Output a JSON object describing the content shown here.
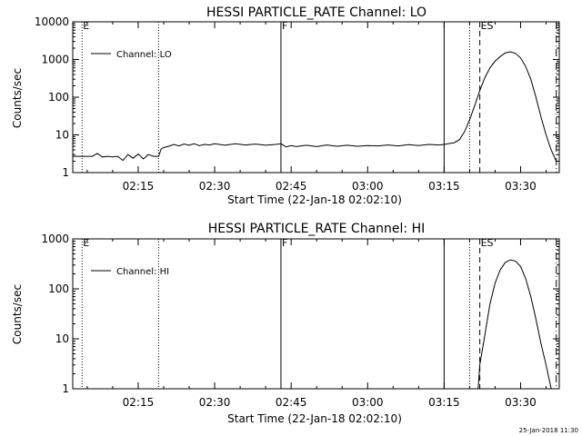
{
  "footer": {
    "timestamp": "25-Jan-2018 11:30"
  },
  "chart_data": [
    {
      "type": "line",
      "title": "HESSI PARTICLE_RATE Channel: LO",
      "xlabel": "Start Time (22-Jan-18 02:02:10)",
      "ylabel": "Counts/sec",
      "yscale": "log",
      "ylim": [
        1,
        10000
      ],
      "yticks": [
        1,
        10,
        100,
        1000,
        10000
      ],
      "ytick_labels": [
        "1",
        "10",
        "100",
        "1000",
        "10000"
      ],
      "xlim": [
        "02:02:10",
        "03:37:35"
      ],
      "xticks": [
        "02:15",
        "02:30",
        "02:45",
        "03:00",
        "03:15",
        "03:30"
      ],
      "legend": {
        "label": "Channel: LO",
        "placement": "top-left"
      },
      "markers": [
        {
          "time": "02:04",
          "label": "E",
          "style": "dotted"
        },
        {
          "time": "02:19",
          "label": "",
          "style": "dotted"
        },
        {
          "time": "02:43",
          "label": "F",
          "style": "solid"
        },
        {
          "time": "03:15",
          "label": "",
          "style": "solid"
        },
        {
          "time": "03:20",
          "label": "",
          "style": "dotted"
        },
        {
          "time": "03:22",
          "label": "ES",
          "style": "dashed"
        },
        {
          "time": "03:37",
          "label": "",
          "style": "dash-dot"
        }
      ],
      "series": [
        {
          "name": "Channel: LO",
          "points": [
            [
              "02:02:10",
              2.7
            ],
            [
              "02:06",
              2.7
            ],
            [
              "02:07",
              3.2
            ],
            [
              "02:08",
              2.6
            ],
            [
              "02:09",
              2.7
            ],
            [
              "02:10",
              2.6
            ],
            [
              "02:11",
              2.7
            ],
            [
              "02:12",
              2.1
            ],
            [
              "02:13",
              3.0
            ],
            [
              "02:14",
              2.4
            ],
            [
              "02:15",
              3.1
            ],
            [
              "02:16",
              2.3
            ],
            [
              "02:17",
              3.0
            ],
            [
              "02:18",
              2.7
            ],
            [
              "02:19",
              2.7
            ],
            [
              "02:19:30",
              4.2
            ],
            [
              "02:20",
              4.6
            ],
            [
              "02:21",
              5.0
            ],
            [
              "02:22",
              5.6
            ],
            [
              "02:23",
              5.1
            ],
            [
              "02:24",
              5.7
            ],
            [
              "02:25",
              5.3
            ],
            [
              "02:26",
              5.8
            ],
            [
              "02:27",
              5.2
            ],
            [
              "02:28",
              5.6
            ],
            [
              "02:29",
              5.4
            ],
            [
              "02:30",
              5.8
            ],
            [
              "02:32",
              5.3
            ],
            [
              "02:34",
              5.8
            ],
            [
              "02:36",
              5.4
            ],
            [
              "02:38",
              5.7
            ],
            [
              "02:40",
              5.3
            ],
            [
              "02:42",
              5.6
            ],
            [
              "02:43",
              5.8
            ],
            [
              "02:44",
              4.8
            ],
            [
              "02:45",
              5.2
            ],
            [
              "02:46",
              4.9
            ],
            [
              "02:48",
              5.3
            ],
            [
              "02:50",
              4.9
            ],
            [
              "02:52",
              5.4
            ],
            [
              "02:54",
              5.0
            ],
            [
              "02:56",
              5.3
            ],
            [
              "02:58",
              5.0
            ],
            [
              "03:00",
              5.2
            ],
            [
              "03:02",
              5.1
            ],
            [
              "03:04",
              5.4
            ],
            [
              "03:06",
              5.1
            ],
            [
              "03:08",
              5.5
            ],
            [
              "03:10",
              5.2
            ],
            [
              "03:12",
              5.6
            ],
            [
              "03:14",
              5.4
            ],
            [
              "03:15",
              5.6
            ],
            [
              "03:16",
              5.9
            ],
            [
              "03:17",
              6.2
            ],
            [
              "03:18",
              7.5
            ],
            [
              "03:19",
              12
            ],
            [
              "03:20",
              25
            ],
            [
              "03:21",
              60
            ],
            [
              "03:22",
              150
            ],
            [
              "03:23",
              330
            ],
            [
              "03:24",
              600
            ],
            [
              "03:25",
              900
            ],
            [
              "03:26",
              1200
            ],
            [
              "03:27",
              1500
            ],
            [
              "03:28",
              1600
            ],
            [
              "03:29",
              1450
            ],
            [
              "03:30",
              1100
            ],
            [
              "03:31",
              650
            ],
            [
              "03:32",
              300
            ],
            [
              "03:33",
              100
            ],
            [
              "03:34",
              30
            ],
            [
              "03:35",
              10
            ],
            [
              "03:36",
              4
            ],
            [
              "03:37",
              2
            ]
          ]
        }
      ]
    },
    {
      "type": "line",
      "title": "HESSI PARTICLE_RATE Channel: HI",
      "xlabel": "Start Time (22-Jan-18 02:02:10)",
      "ylabel": "Counts/sec",
      "yscale": "log",
      "ylim": [
        1,
        1000
      ],
      "yticks": [
        1,
        10,
        100,
        1000
      ],
      "ytick_labels": [
        "1",
        "10",
        "100",
        "1000"
      ],
      "xlim": [
        "02:02:10",
        "03:37:35"
      ],
      "xticks": [
        "02:15",
        "02:30",
        "02:45",
        "03:00",
        "03:15",
        "03:30"
      ],
      "legend": {
        "label": "Channel: HI",
        "placement": "top-left"
      },
      "markers": [
        {
          "time": "02:04",
          "label": "E",
          "style": "dotted"
        },
        {
          "time": "02:19",
          "label": "",
          "style": "dotted"
        },
        {
          "time": "02:43",
          "label": "F",
          "style": "solid"
        },
        {
          "time": "03:15",
          "label": "",
          "style": "solid"
        },
        {
          "time": "03:20",
          "label": "",
          "style": "dotted"
        },
        {
          "time": "03:22",
          "label": "ES",
          "style": "dashed"
        },
        {
          "time": "03:37",
          "label": "",
          "style": "dash-dot"
        }
      ],
      "series": [
        {
          "name": "Channel: HI",
          "points": [
            [
              "03:21:40",
              1
            ],
            [
              "03:22",
              3
            ],
            [
              "03:23",
              12
            ],
            [
              "03:24",
              50
            ],
            [
              "03:25",
              130
            ],
            [
              "03:26",
              240
            ],
            [
              "03:27",
              340
            ],
            [
              "03:28",
              380
            ],
            [
              "03:29",
              360
            ],
            [
              "03:30",
              280
            ],
            [
              "03:31",
              160
            ],
            [
              "03:32",
              70
            ],
            [
              "03:33",
              25
            ],
            [
              "03:34",
              8
            ],
            [
              "03:35",
              3
            ],
            [
              "03:36",
              1
            ]
          ]
        }
      ]
    }
  ]
}
